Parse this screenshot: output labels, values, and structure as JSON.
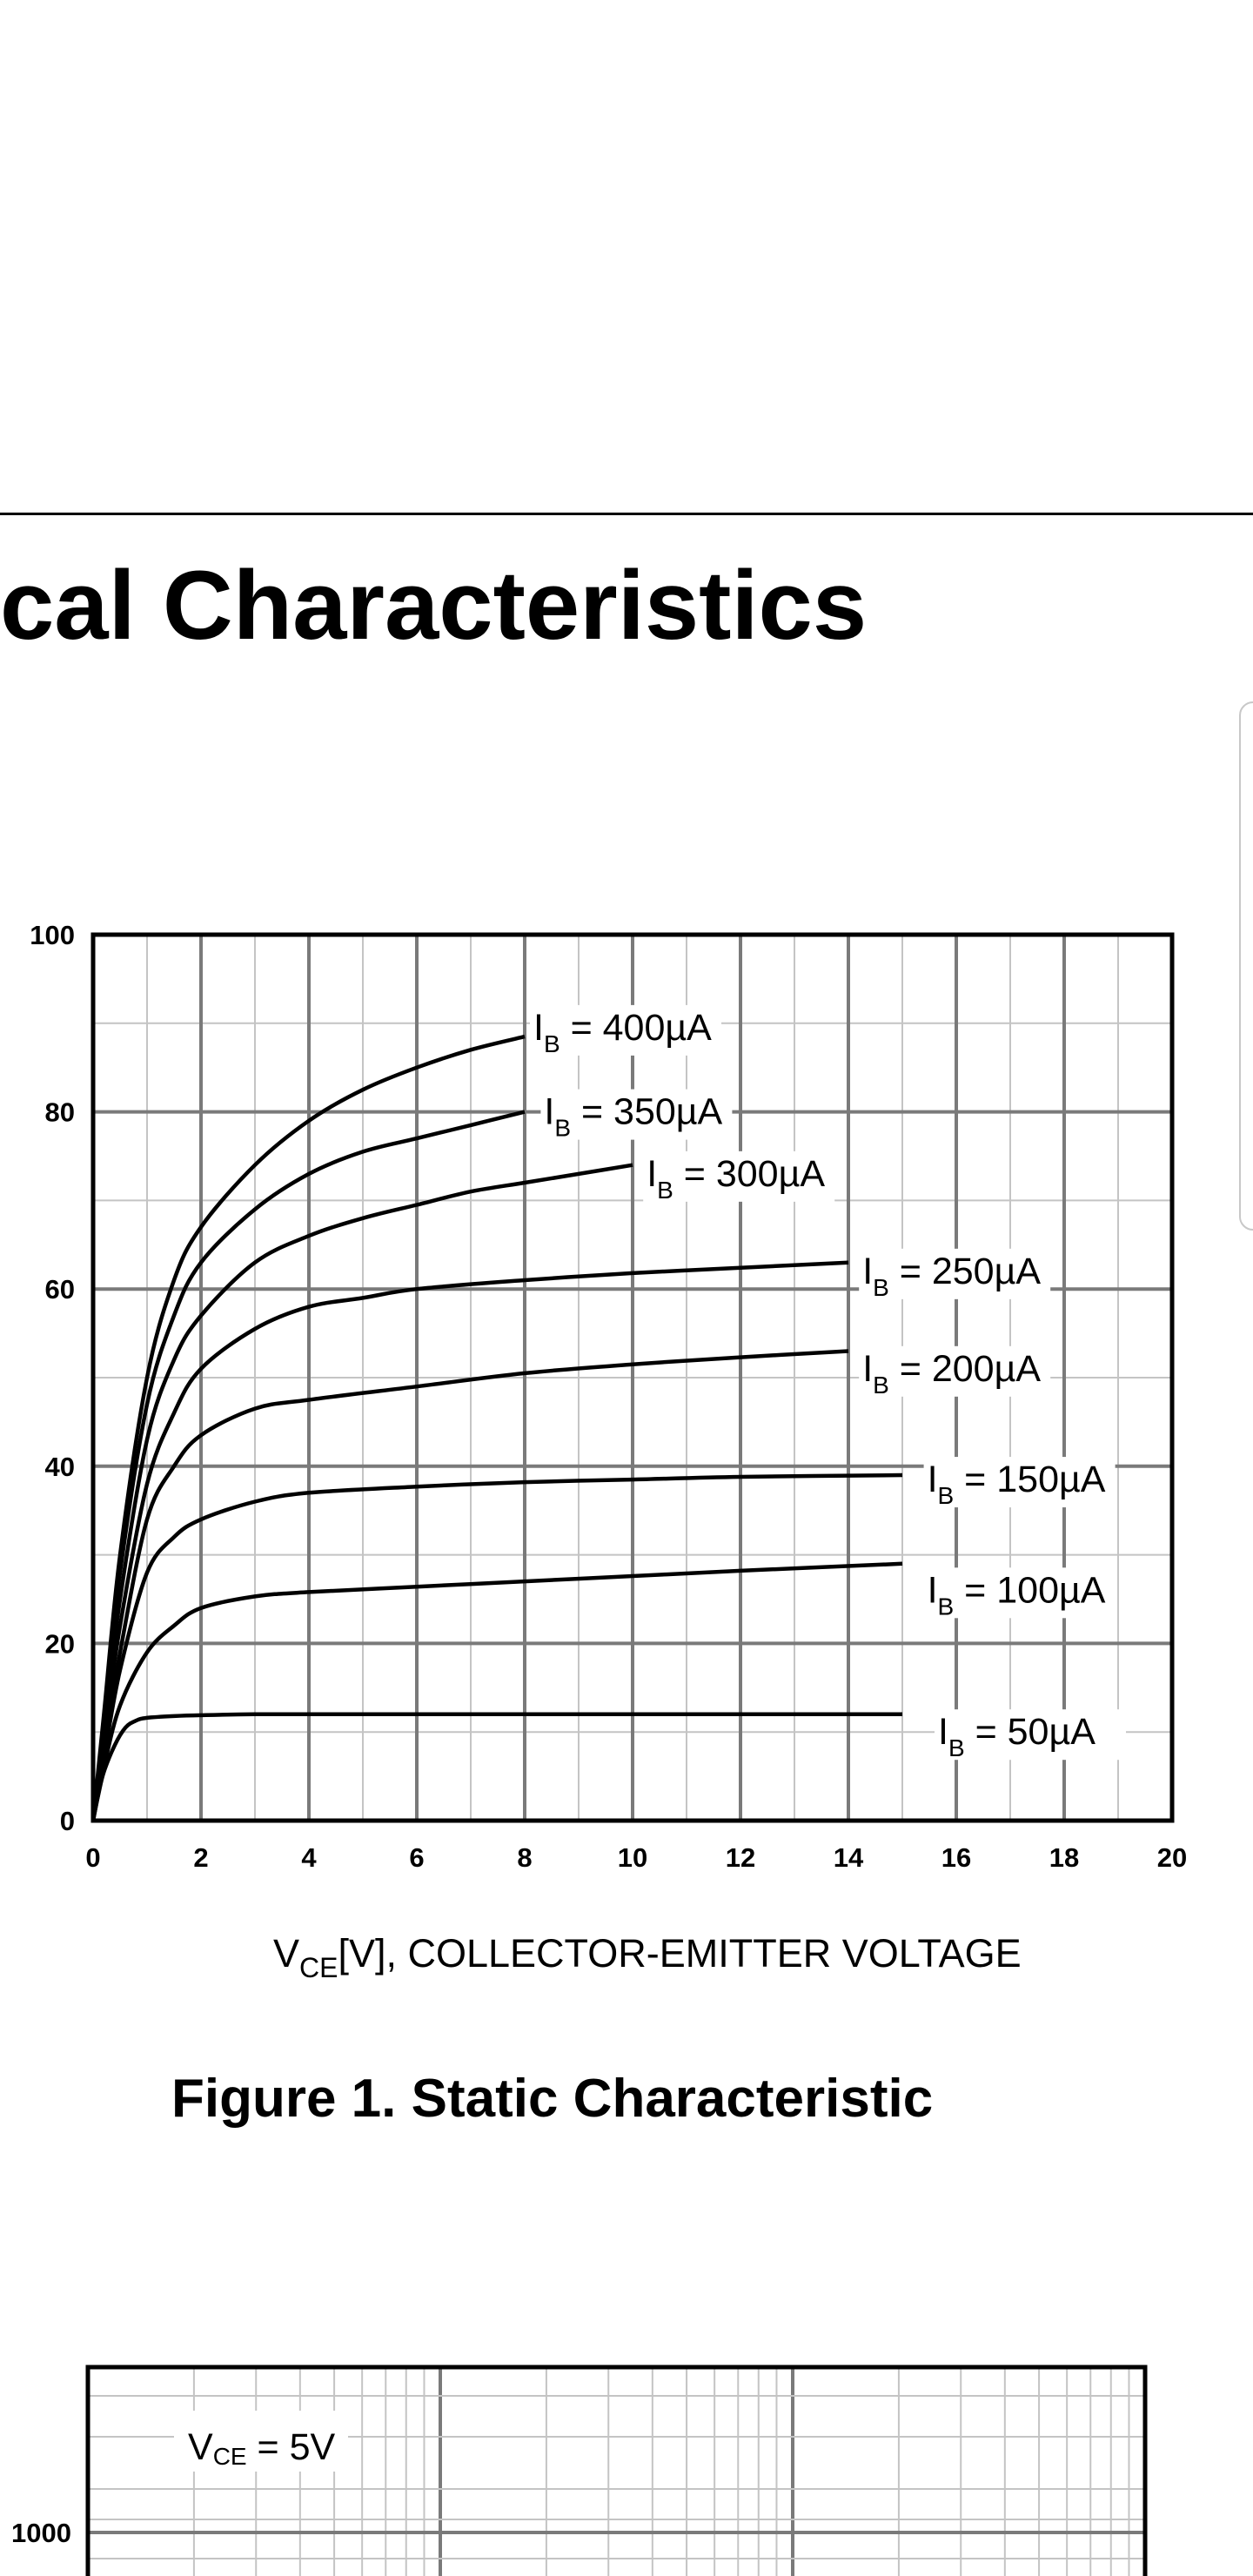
{
  "section": {
    "title": "cal Characteristics"
  },
  "colors": {
    "ink": "#000000",
    "grid_major": "#7a7a7a",
    "grid_minor": "#c4c4c4",
    "panel_border": "#c8c8c8"
  },
  "chart_data": [
    {
      "type": "line",
      "title": "",
      "caption": "Figure 1. Static Characteristic",
      "xlabel": {
        "main": "V",
        "sub": "CE",
        "rest": "[V], COLLECTOR-EMITTER VOLTAGE"
      },
      "ylabel": "",
      "xlim": [
        0,
        20
      ],
      "ylim": [
        0,
        100
      ],
      "xticks": [
        "0",
        "2",
        "4",
        "6",
        "8",
        "10",
        "12",
        "14",
        "16",
        "18",
        "20"
      ],
      "yticks": [
        "0",
        "20",
        "40",
        "60",
        "80",
        "100"
      ],
      "grid": true,
      "legend": "inline",
      "series": [
        {
          "name": "400µA",
          "label": {
            "prefix": "I",
            "sub": "B",
            "value": " = 400µA"
          },
          "x": [
            0,
            0.2,
            0.5,
            1,
            1.5,
            2,
            3,
            4,
            5,
            6,
            7,
            8
          ],
          "y": [
            0,
            12,
            30,
            50,
            61,
            67,
            74,
            79,
            82.5,
            85,
            87,
            88.5
          ]
        },
        {
          "name": "350µA",
          "label": {
            "prefix": "I",
            "sub": "B",
            "value": " = 350µA"
          },
          "x": [
            0,
            0.2,
            0.5,
            1,
            1.5,
            2,
            3,
            4,
            5,
            6,
            7,
            8
          ],
          "y": [
            0,
            11,
            28,
            47,
            57,
            63,
            69,
            73,
            75.5,
            77,
            78.5,
            80
          ]
        },
        {
          "name": "300µA",
          "label": {
            "prefix": "I",
            "sub": "B",
            "value": " = 300µA"
          },
          "x": [
            0,
            0.2,
            0.5,
            1,
            1.5,
            2,
            3,
            4,
            5,
            6,
            7,
            8,
            9,
            10
          ],
          "y": [
            0,
            10,
            25,
            43,
            52,
            57,
            63,
            66,
            68,
            69.5,
            71,
            72,
            73,
            74
          ]
        },
        {
          "name": "250µA",
          "label": {
            "prefix": "I",
            "sub": "B",
            "value": " = 250µA"
          },
          "x": [
            0,
            0.2,
            0.5,
            1,
            1.5,
            2,
            3,
            4,
            5,
            6,
            8,
            10,
            12,
            14
          ],
          "y": [
            0,
            9,
            22,
            38,
            46,
            51,
            55.5,
            58,
            59,
            60,
            61,
            61.8,
            62.4,
            63
          ]
        },
        {
          "name": "200µA",
          "label": {
            "prefix": "I",
            "sub": "B",
            "value": " = 200µA"
          },
          "x": [
            0,
            0.2,
            0.5,
            1,
            1.5,
            2,
            3,
            4,
            6,
            8,
            10,
            12,
            14
          ],
          "y": [
            0,
            8,
            19,
            34,
            40,
            43.5,
            46.5,
            47.5,
            49,
            50.5,
            51.5,
            52.3,
            53
          ]
        },
        {
          "name": "150µA",
          "label": {
            "prefix": "I",
            "sub": "B",
            "value": " = 150µA"
          },
          "x": [
            0,
            0.2,
            0.5,
            1,
            1.5,
            2,
            3,
            4,
            6,
            8,
            10,
            12,
            15
          ],
          "y": [
            0,
            7,
            17,
            28,
            32,
            34,
            36,
            37,
            37.7,
            38.2,
            38.5,
            38.8,
            39
          ]
        },
        {
          "name": "100µA",
          "label": {
            "prefix": "I",
            "sub": "B",
            "value": " = 100µA"
          },
          "x": [
            0,
            0.2,
            0.5,
            1,
            1.5,
            2,
            3,
            4,
            6,
            8,
            10,
            12,
            15
          ],
          "y": [
            0,
            6,
            13,
            19,
            22,
            24,
            25.3,
            25.8,
            26.4,
            27,
            27.6,
            28.2,
            29
          ]
        },
        {
          "name": "50µA",
          "label": {
            "prefix": "I",
            "sub": "B",
            "value": " = 50µA"
          },
          "x": [
            0,
            0.1,
            0.2,
            0.4,
            0.6,
            0.8,
            1,
            1.5,
            2,
            3,
            5,
            10,
            15
          ],
          "y": [
            0,
            3,
            5.5,
            8.5,
            10.5,
            11.3,
            11.6,
            11.8,
            11.9,
            12,
            12,
            12,
            12
          ]
        }
      ]
    },
    {
      "type": "line",
      "title": "",
      "annotation": {
        "main": "V",
        "sub": "CE",
        "rest": " = 5V"
      },
      "yticks": [
        "1000"
      ],
      "grid": true,
      "series": []
    }
  ]
}
